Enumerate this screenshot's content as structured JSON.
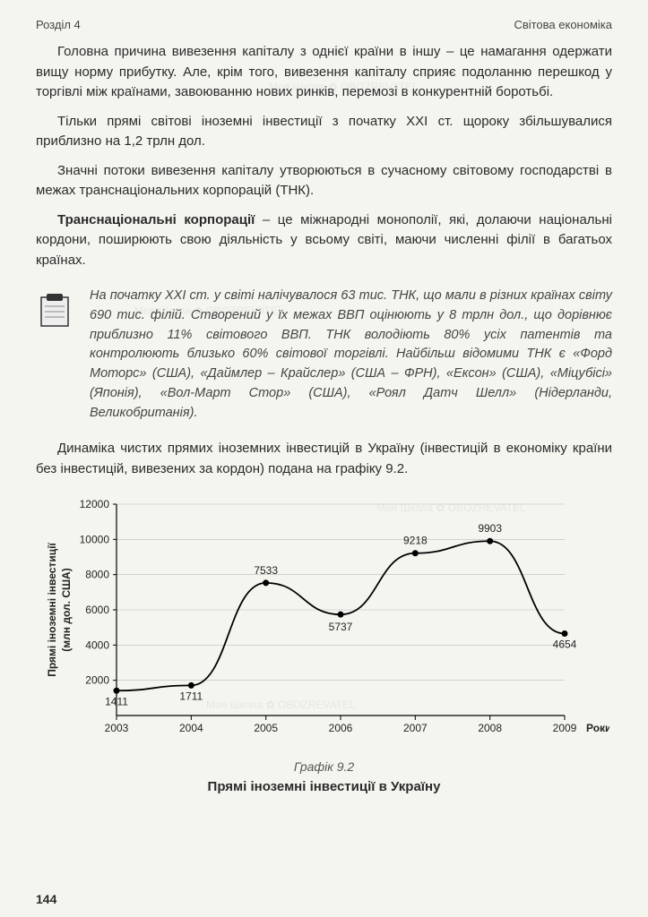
{
  "header": {
    "section": "Розділ 4",
    "topic": "Світова економіка"
  },
  "paragraphs": {
    "p1": "Головна причина вивезення капіталу з однієї країни в іншу – це намагання одержати вищу норму прибутку. Але, крім того, вивезення капіталу сприяє подоланню перешкод у торгівлі між країнами, завоюванню нових ринків, перемозі в конкурентній боротьбі.",
    "p2": "Тільки прямі світові іноземні інвестиції з початку XXI ст. щороку збільшувалися приблизно на 1,2 трлн дол.",
    "p3": "Значні потоки вивезення капіталу утворюються в сучасному світовому господарстві в межах транснаціональних корпорацій (ТНК).",
    "term_bold": "Транснаціональні корпорації",
    "term_rest": " – це міжнародні монополії, які, долаючи національні кордони, поширюють свою діяльність у всьому світі, маючи численні філії в багатьох країнах.",
    "note": "На початку XXI ст. у світі налічувалося 63 тис. ТНК, що мали в різних країнах світу 690 тис. філій. Створений у їх межах ВВП оцінюють у 8 трлн дол., що дорівнює приблизно 11% світового ВВП. ТНК володіють 80% усіх патентів та контролюють близько 60% світової торгівлі. Найбільш відомими ТНК є «Форд Моторс» (США), «Даймлер – Крайслер» (США – ФРН), «Ексон» (США), «Міцубісі» (Японія), «Вол-Март Стор» (США), «Роял Датч Шелл» (Нідерланди, Великобританія).",
    "p4": "Динаміка чистих прямих іноземних інвестицій в Україну (інвестицій в економіку країни без інвестицій, вивезених за кордон) подана на графіку 9.2."
  },
  "chart": {
    "type": "line",
    "years": [
      "2003",
      "2004",
      "2005",
      "2006",
      "2007",
      "2008",
      "2009"
    ],
    "values": [
      1411,
      1711,
      7533,
      5737,
      9218,
      9903,
      4654
    ],
    "point_labels": [
      "1411",
      "1711",
      "7533",
      "5737",
      "9218",
      "9903",
      "4654"
    ],
    "ytick_values": [
      2000,
      4000,
      6000,
      8000,
      10000,
      12000
    ],
    "ylim": [
      0,
      12000
    ],
    "xlabel": "Роки",
    "ylabel_line1": "Прямі іноземні інвестиції",
    "ylabel_line2": "(млн дол. США)",
    "caption": "Графік 9.2",
    "title": "Прямі іноземні інвестиції в Україну",
    "line_color": "#000000",
    "marker_fill": "#000000",
    "marker_radius": 3.5,
    "line_width": 1.8,
    "grid_color": "#bbbbbb",
    "axis_color": "#000000",
    "background_color": "#f5f5f0",
    "label_fontsize": 12,
    "tick_fontsize": 12,
    "title_fontsize": 15
  },
  "page_number": "144",
  "watermark_text": "Моя Школа ✿ OBOZREVATEL"
}
